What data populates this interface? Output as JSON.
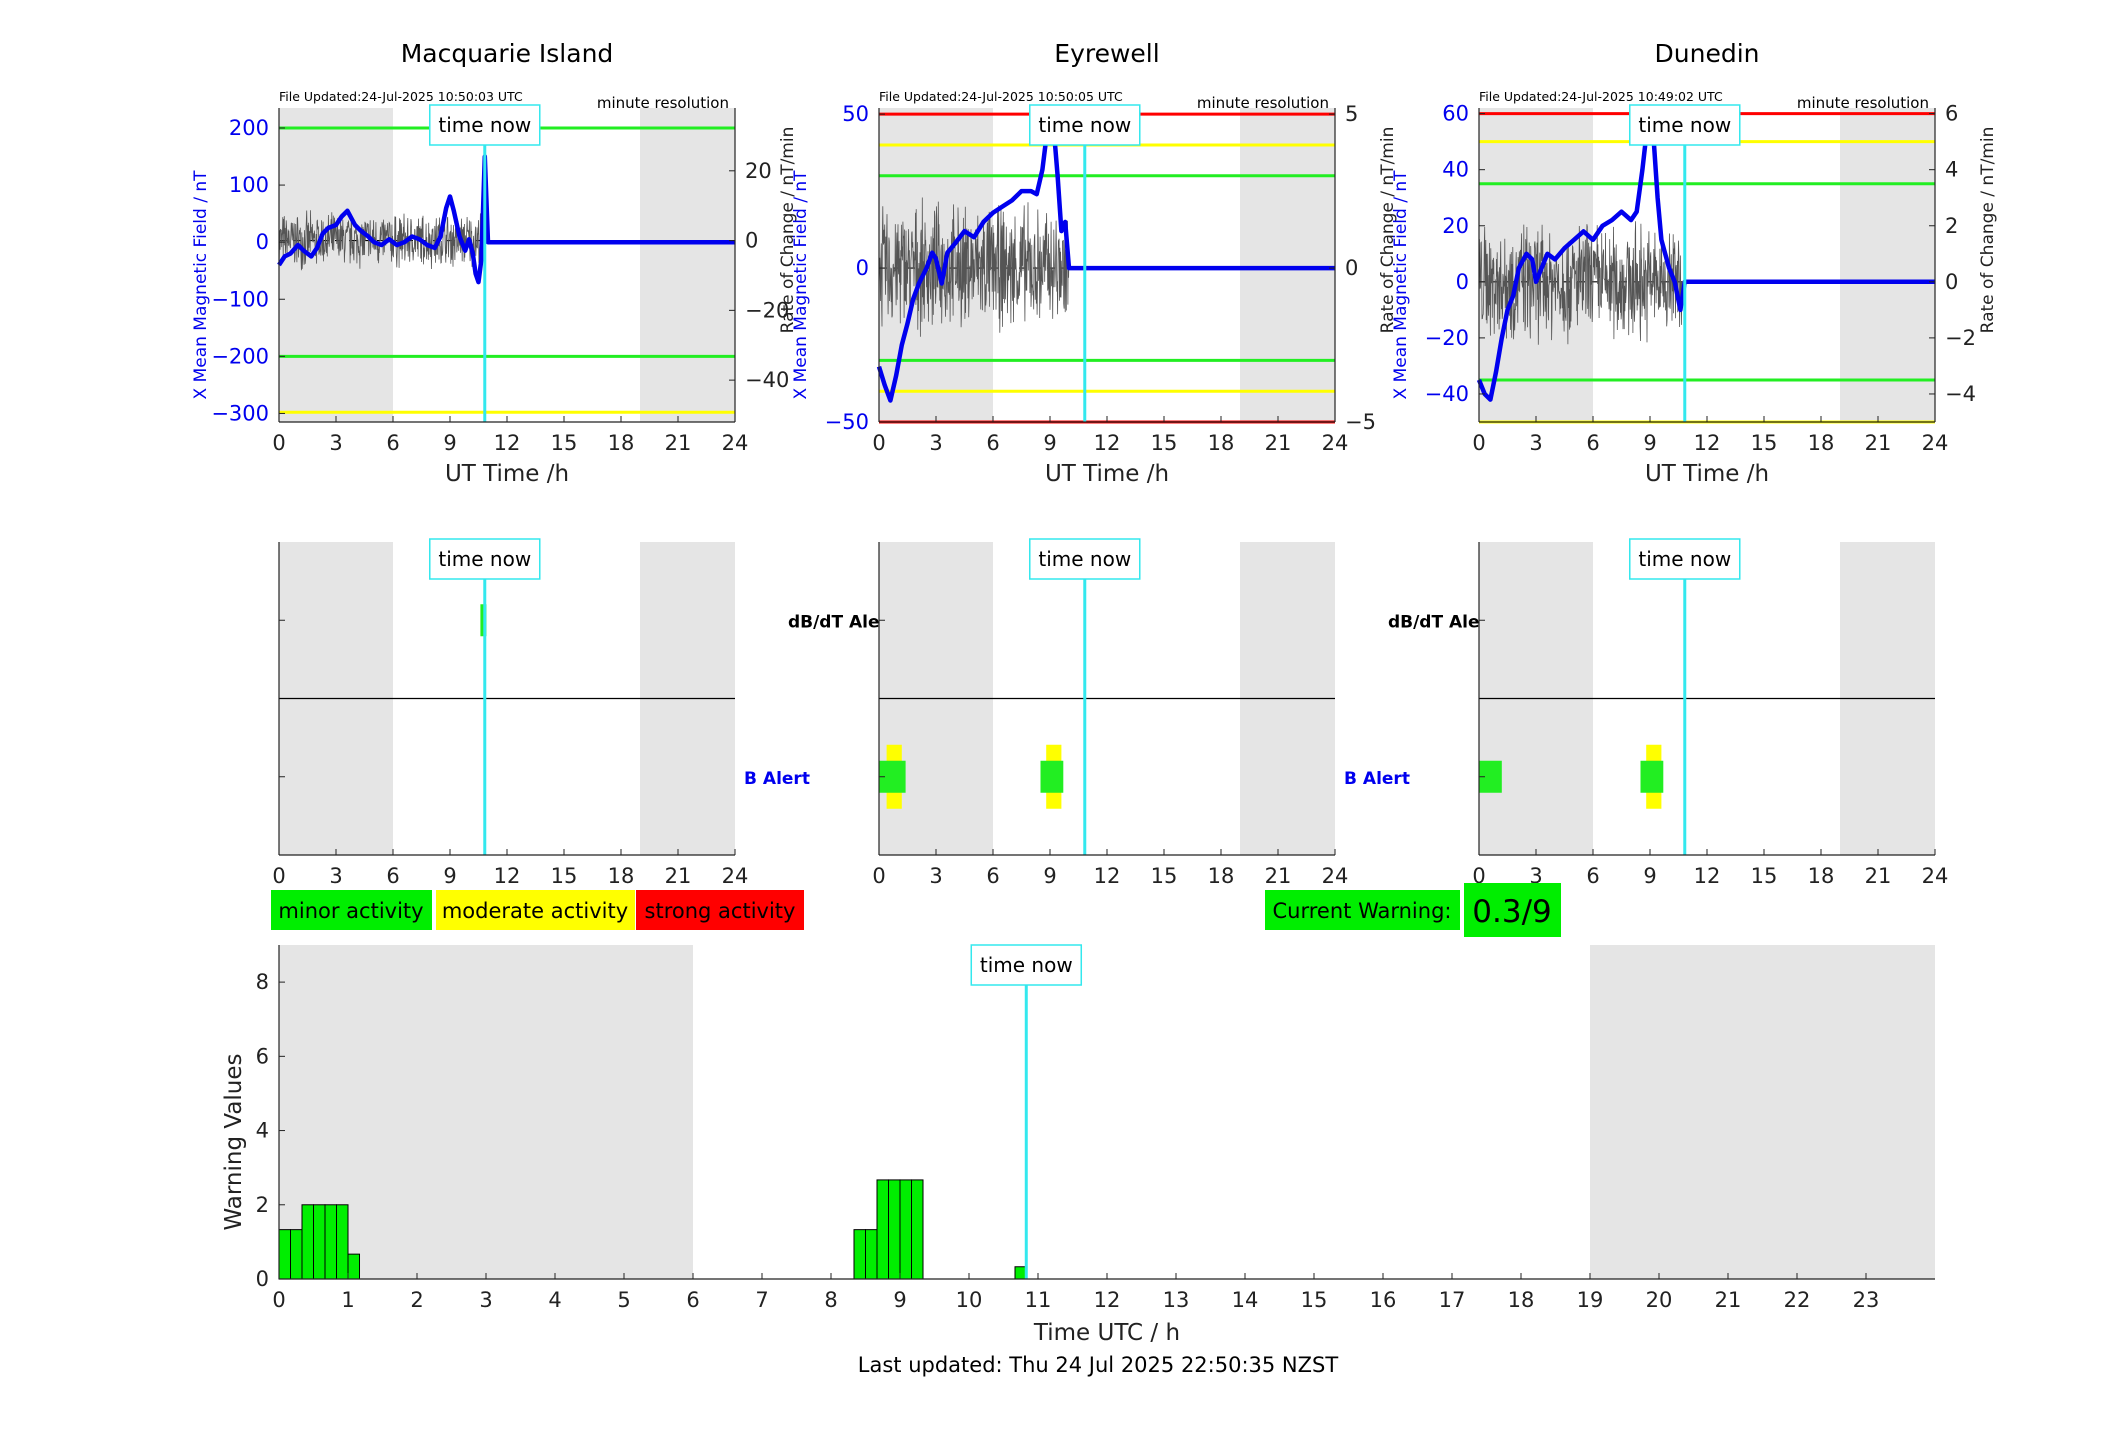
{
  "theme": {
    "blue": "#0000ee",
    "cyan": "#33e8ee",
    "green": "#22ee22",
    "yellow": "#ffff00",
    "red": "#ff0000",
    "shade": "#e5e5e5",
    "bar_green": "#00ee00"
  },
  "common": {
    "time_now_label": "time now",
    "resolution_label": "minute resolution",
    "x_label": "UT Time /h",
    "y_left_label": "X Mean Magnetic Field / nT",
    "y_right_label": "Rate of Change / nT/min",
    "dbdt_label": "dB/dT Alert",
    "b_label": "B Alert",
    "time_now_hour": 10.83,
    "night_shading": [
      [
        0,
        6
      ],
      [
        19,
        24
      ]
    ]
  },
  "chart_data": [
    {
      "type": "line",
      "id": "macquarie",
      "title": "Macquarie Island",
      "file_updated": "File Updated:24-Jul-2025 10:50:03 UTC",
      "xlim": [
        0,
        24
      ],
      "xticks": [
        0,
        3,
        6,
        9,
        12,
        15,
        18,
        21,
        24
      ],
      "ylim": [
        -315,
        235
      ],
      "yticks": [
        -300,
        -200,
        -100,
        0,
        100,
        200
      ],
      "ylim_right": [
        -52,
        38
      ],
      "yticks_right": [
        -40,
        -20,
        0,
        20
      ],
      "thresholds": [
        {
          "value": 200,
          "color": "green"
        },
        {
          "value": -200,
          "color": "green"
        },
        {
          "value": -298,
          "color": "yellow"
        }
      ],
      "series": [
        {
          "axis": "left",
          "style": "thick-blue",
          "x": [
            0,
            0.3,
            0.6,
            1.0,
            1.3,
            1.7,
            2.0,
            2.3,
            2.6,
            3.0,
            3.3,
            3.6,
            4.0,
            4.3,
            4.7,
            5.0,
            5.4,
            5.8,
            6.2,
            6.6,
            7.0,
            7.4,
            7.8,
            8.2,
            8.5,
            8.8,
            9.0,
            9.2,
            9.5,
            9.8,
            10.0,
            10.2,
            10.35,
            10.5,
            10.65,
            10.83,
            11.0,
            24
          ],
          "y": [
            -40,
            -25,
            -20,
            -5,
            -15,
            -25,
            -10,
            15,
            25,
            30,
            45,
            55,
            30,
            20,
            10,
            0,
            -5,
            5,
            -5,
            0,
            10,
            5,
            -5,
            -10,
            10,
            60,
            80,
            55,
            10,
            -15,
            5,
            -20,
            -55,
            -70,
            -30,
            150,
            0,
            0
          ]
        },
        {
          "axis": "right",
          "style": "thin-black-noise",
          "x_start": 0,
          "x_end": 10.8,
          "amplitude": 9
        }
      ]
    },
    {
      "type": "line",
      "id": "eyrewell",
      "title": "Eyrewell",
      "file_updated": "File Updated:24-Jul-2025 10:50:05 UTC",
      "xlim": [
        0,
        24
      ],
      "xticks": [
        0,
        3,
        6,
        9,
        12,
        15,
        18,
        21,
        24
      ],
      "ylim": [
        -50,
        52
      ],
      "yticks": [
        -50,
        0,
        50
      ],
      "ylim_right": [
        -5,
        5.2
      ],
      "yticks_right": [
        -5,
        0,
        5
      ],
      "thresholds": [
        {
          "value": 50,
          "color": "red"
        },
        {
          "value": 40,
          "color": "yellow"
        },
        {
          "value": 30,
          "color": "green"
        },
        {
          "value": -30,
          "color": "green"
        },
        {
          "value": -40,
          "color": "yellow"
        },
        {
          "value": -50,
          "color": "red"
        }
      ],
      "series": [
        {
          "axis": "left",
          "style": "thick-blue",
          "x": [
            0,
            0.3,
            0.6,
            0.9,
            1.2,
            1.5,
            1.8,
            2.1,
            2.5,
            2.8,
            3.0,
            3.3,
            3.6,
            4.0,
            4.5,
            5.0,
            5.5,
            6.0,
            6.5,
            7.0,
            7.5,
            8.0,
            8.3,
            8.6,
            8.8,
            9.0,
            9.2,
            9.4,
            9.6,
            9.8,
            10.0,
            10.83,
            24
          ],
          "y": [
            -32,
            -38,
            -43,
            -35,
            -25,
            -18,
            -10,
            -5,
            0,
            5,
            3,
            -5,
            5,
            8,
            12,
            10,
            15,
            18,
            20,
            22,
            25,
            25,
            24,
            32,
            42,
            48,
            45,
            30,
            12,
            15,
            0,
            0,
            0
          ]
        },
        {
          "axis": "right",
          "style": "thin-black-noise",
          "x_start": 0,
          "x_end": 10.0,
          "amplitude": 2.3
        }
      ]
    },
    {
      "type": "line",
      "id": "dunedin",
      "title": "Dunedin",
      "file_updated": "File Updated:24-Jul-2025 10:49:02 UTC",
      "xlim": [
        0,
        24
      ],
      "xticks": [
        0,
        3,
        6,
        9,
        12,
        15,
        18,
        21,
        24
      ],
      "ylim": [
        -50,
        62
      ],
      "yticks": [
        -40,
        -20,
        0,
        20,
        40,
        60
      ],
      "ylim_right": [
        -5,
        6.2
      ],
      "yticks_right": [
        -4,
        -2,
        0,
        2,
        4,
        6
      ],
      "thresholds": [
        {
          "value": 60,
          "color": "red"
        },
        {
          "value": 50,
          "color": "yellow"
        },
        {
          "value": 35,
          "color": "green"
        },
        {
          "value": -35,
          "color": "green"
        },
        {
          "value": -50,
          "color": "yellow"
        }
      ],
      "series": [
        {
          "axis": "left",
          "style": "thick-blue",
          "x": [
            0,
            0.3,
            0.6,
            0.9,
            1.2,
            1.5,
            1.8,
            2.1,
            2.5,
            2.8,
            3.0,
            3.3,
            3.6,
            4.0,
            4.5,
            5.0,
            5.5,
            6.0,
            6.5,
            7.0,
            7.5,
            8.0,
            8.3,
            8.6,
            8.8,
            9.0,
            9.2,
            9.4,
            9.6,
            9.8,
            10.0,
            10.3,
            10.6,
            10.83,
            11.0,
            24
          ],
          "y": [
            -35,
            -40,
            -42,
            -32,
            -20,
            -10,
            -5,
            5,
            10,
            8,
            0,
            5,
            10,
            8,
            12,
            15,
            18,
            15,
            20,
            22,
            25,
            22,
            25,
            40,
            52,
            55,
            50,
            30,
            15,
            10,
            5,
            0,
            -10,
            0,
            0,
            0
          ]
        },
        {
          "axis": "right",
          "style": "thin-black-noise",
          "x_start": 0,
          "x_end": 10.7,
          "amplitude": 2.4
        }
      ]
    },
    {
      "type": "bar",
      "id": "warning-values",
      "xlabel": "Time UTC / h",
      "ylabel": "Warning Values",
      "xlim": [
        0,
        24
      ],
      "xticks": [
        0,
        1,
        2,
        3,
        4,
        5,
        6,
        7,
        8,
        9,
        10,
        11,
        12,
        13,
        14,
        15,
        16,
        17,
        18,
        19,
        20,
        21,
        22,
        23
      ],
      "ylim": [
        0,
        9
      ],
      "yticks": [
        0,
        2,
        4,
        6,
        8
      ],
      "bar_width": 0.1667,
      "bars": [
        {
          "x": 0.0,
          "value": 1.33
        },
        {
          "x": 0.1667,
          "value": 1.33
        },
        {
          "x": 0.3333,
          "value": 2.0
        },
        {
          "x": 0.5,
          "value": 2.0
        },
        {
          "x": 0.6667,
          "value": 2.0
        },
        {
          "x": 0.8333,
          "value": 2.0
        },
        {
          "x": 1.0,
          "value": 0.67
        },
        {
          "x": 8.3333,
          "value": 1.33
        },
        {
          "x": 8.5,
          "value": 1.33
        },
        {
          "x": 8.6667,
          "value": 2.67
        },
        {
          "x": 8.8333,
          "value": 2.67
        },
        {
          "x": 9.0,
          "value": 2.67
        },
        {
          "x": 9.1667,
          "value": 2.67
        },
        {
          "x": 10.6667,
          "value": 0.33
        }
      ]
    }
  ],
  "alerts": [
    {
      "id": "macquarie",
      "dbdt": [
        {
          "start": 10.6,
          "end": 10.85,
          "color": "green"
        }
      ],
      "b": []
    },
    {
      "id": "eyrewell",
      "dbdt": [],
      "b": [
        {
          "start": 0.4,
          "end": 1.2,
          "color": "yellow",
          "level": "tall"
        },
        {
          "start": 0.0,
          "end": 1.4,
          "color": "green",
          "level": "short"
        },
        {
          "start": 8.8,
          "end": 9.6,
          "color": "yellow",
          "level": "tall"
        },
        {
          "start": 8.5,
          "end": 9.7,
          "color": "green",
          "level": "short"
        }
      ]
    },
    {
      "id": "dunedin",
      "dbdt": [],
      "b": [
        {
          "start": 0.0,
          "end": 1.2,
          "color": "green",
          "level": "short"
        },
        {
          "start": 8.8,
          "end": 9.6,
          "color": "yellow",
          "level": "tall"
        },
        {
          "start": 8.5,
          "end": 9.7,
          "color": "green",
          "level": "short"
        }
      ]
    }
  ],
  "legend": {
    "minor": "minor activity",
    "moderate": "moderate activity",
    "strong": "strong activity"
  },
  "current_warning": {
    "label": "Current Warning:",
    "value": "0.3/9"
  },
  "footer": {
    "last_updated": "Last updated: Thu 24 Jul 2025 22:50:35 NZST"
  }
}
